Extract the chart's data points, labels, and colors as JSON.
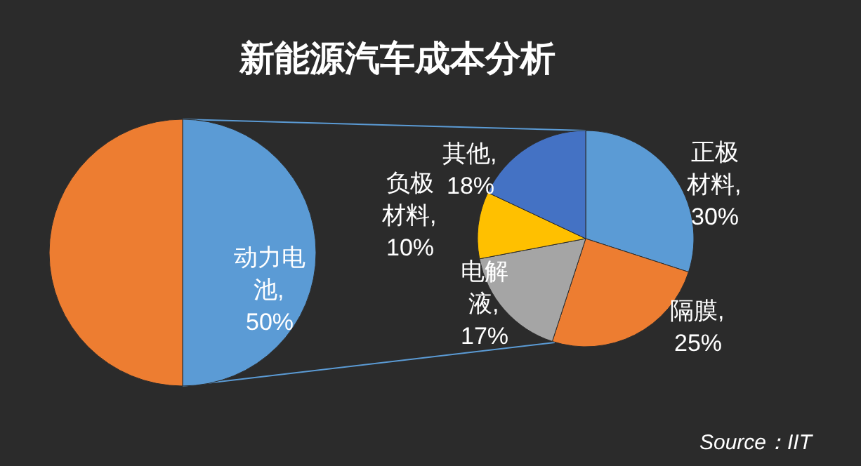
{
  "chart_data": [
    {
      "type": "pie",
      "title": "新能源汽车成本分析",
      "categories": [
        "动力电池",
        null
      ],
      "values": [
        50,
        50
      ],
      "colors": [
        "#5b9bd5",
        "#ed7d31"
      ],
      "value_labels": [
        ",50%",
        null
      ]
    },
    {
      "type": "pie",
      "categories": [
        "正极材料",
        "隔膜",
        "电解液",
        "负极材料",
        "其他"
      ],
      "values": [
        30,
        25,
        17,
        10,
        18
      ],
      "colors": [
        "#5b9bd5",
        "#ed7d31",
        "#a5a5a5",
        "#ffc000",
        "#4472c4"
      ],
      "value_labels": [
        ",30%",
        ",25%",
        ",17%",
        ",10%",
        ",18%"
      ],
      "annotations": [
        "Source：IIT"
      ]
    }
  ]
}
